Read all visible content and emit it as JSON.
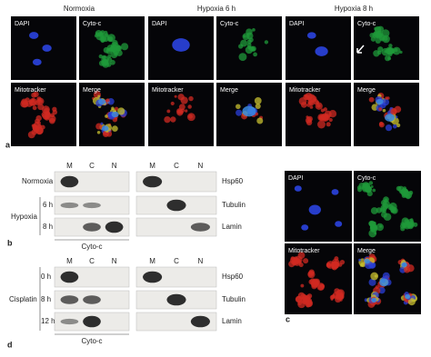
{
  "panel_a": {
    "label": "a",
    "groups": [
      {
        "title": "Normoxia",
        "channels": [
          "DAPI",
          "Cyto-c",
          "Mitotracker",
          "Merge"
        ]
      },
      {
        "title": "Hypoxia 6 h",
        "channels": [
          "DAPI",
          "Cyto-c",
          "Mitotracker",
          "Merge"
        ]
      },
      {
        "title": "Hypoxia 8 h",
        "channels": [
          "DAPI",
          "Cyto-c",
          "Mitotracker",
          "Merge"
        ]
      }
    ]
  },
  "panel_b": {
    "label": "b",
    "conditions": [
      "Normoxia",
      "Hypoxia"
    ],
    "times": [
      "6 h",
      "8 h"
    ],
    "lanes_left": [
      "M",
      "C",
      "N"
    ],
    "lanes_right": [
      "M",
      "C",
      "N"
    ],
    "markers": [
      "Hsp60",
      "Tubulin",
      "Lamin"
    ],
    "blot_label": "Cyto-c"
  },
  "panel_c": {
    "label": "c",
    "channels": [
      "DAPI",
      "Cyto-c",
      "Mitotracker",
      "Merge"
    ]
  },
  "panel_d": {
    "label": "d",
    "condition": "Cisplatin",
    "times": [
      "0 h",
      "8 h",
      "12 h"
    ],
    "lanes_left": [
      "M",
      "C",
      "N"
    ],
    "lanes_right": [
      "M",
      "C",
      "N"
    ],
    "markers": [
      "Hsp60",
      "Tubulin",
      "Lamin"
    ],
    "blot_label": "Cyto-c"
  }
}
